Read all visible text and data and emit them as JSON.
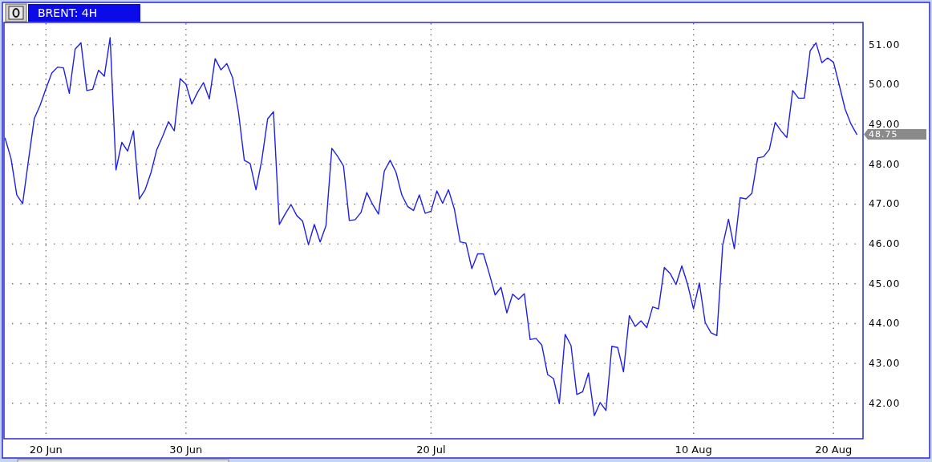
{
  "chart_data": {
    "type": "line",
    "title": "BRENT: 4H",
    "categories": [
      null,
      null,
      null,
      null,
      null,
      null,
      null,
      "20 Jun",
      null,
      null,
      null,
      null,
      null,
      null,
      null,
      null,
      null,
      null,
      null,
      null,
      null,
      null,
      null,
      null,
      null,
      null,
      null,
      null,
      null,
      null,
      null,
      "30 Jun",
      null,
      null,
      null,
      null,
      null,
      null,
      null,
      null,
      null,
      null,
      null,
      null,
      null,
      null,
      null,
      null,
      null,
      null,
      null,
      null,
      null,
      null,
      null,
      null,
      null,
      null,
      null,
      null,
      null,
      null,
      null,
      null,
      null,
      null,
      null,
      null,
      null,
      null,
      null,
      null,
      null,
      "20 Jul",
      null,
      null,
      null,
      null,
      null,
      null,
      null,
      null,
      null,
      null,
      null,
      null,
      null,
      null,
      null,
      null,
      null,
      null,
      null,
      null,
      null,
      null,
      null,
      null,
      null,
      null,
      null,
      null,
      null,
      null,
      null,
      null,
      null,
      null,
      null,
      null,
      null,
      null,
      null,
      null,
      null,
      null,
      null,
      null,
      "10 Aug",
      null,
      null,
      null,
      null,
      null,
      null,
      null,
      null,
      null,
      null,
      null,
      null,
      null,
      null,
      null,
      null,
      null,
      null,
      null,
      null,
      null,
      null,
      null,
      "20 Aug",
      null,
      null,
      null,
      null
    ],
    "series": [
      {
        "color": "#1f1fe8",
        "values": [
          48.65,
          48.15,
          47.23,
          47.01,
          48.1,
          49.15,
          49.48,
          49.9,
          50.29,
          50.44,
          50.42,
          49.78,
          50.89,
          51.05,
          49.85,
          49.88,
          50.36,
          50.21,
          51.18,
          47.86,
          48.55,
          48.33,
          48.84,
          47.13,
          47.36,
          47.79,
          48.37,
          48.7,
          49.07,
          48.84,
          50.15,
          50.01,
          49.51,
          49.81,
          50.05,
          49.64,
          50.65,
          50.37,
          50.53,
          50.17,
          49.31,
          48.1,
          48.02,
          47.36,
          48.11,
          49.14,
          49.32,
          46.49,
          46.75,
          46.99,
          46.71,
          46.57,
          45.98,
          46.49,
          46.05,
          46.46,
          48.4,
          48.2,
          47.96,
          46.59,
          46.61,
          46.79,
          47.29,
          46.99,
          46.75,
          47.83,
          48.1,
          47.8,
          47.23,
          46.94,
          46.84,
          47.23,
          46.77,
          46.82,
          47.33,
          47.02,
          47.36,
          46.88,
          46.05,
          46.02,
          45.38,
          45.75,
          45.75,
          45.25,
          44.72,
          44.91,
          44.27,
          44.74,
          44.61,
          44.75,
          43.6,
          43.63,
          43.46,
          42.72,
          42.62,
          41.99,
          43.73,
          43.45,
          42.22,
          42.29,
          42.76,
          41.69,
          42.02,
          41.82,
          43.43,
          43.4,
          42.79,
          44.2,
          43.93,
          44.07,
          43.9,
          44.42,
          44.37,
          45.41,
          45.26,
          44.98,
          45.45,
          44.98,
          44.37,
          45.02,
          44.03,
          43.77,
          43.7,
          45.96,
          46.62,
          45.88,
          47.16,
          47.13,
          47.27,
          48.16,
          48.19,
          48.37,
          49.05,
          48.84,
          48.67,
          49.85,
          49.66,
          49.66,
          50.85,
          51.05,
          50.55,
          50.67,
          50.56,
          49.98,
          49.38,
          49.01,
          48.75
        ],
        "value_labels": [
          null,
          null,
          null,
          null,
          null,
          null,
          null,
          null,
          null,
          null,
          null,
          null,
          null,
          null,
          null,
          null,
          null,
          null,
          null,
          null,
          null,
          null,
          null,
          null,
          null,
          null,
          null,
          null,
          null,
          null,
          null,
          null,
          null,
          null,
          null,
          null,
          null,
          null,
          null,
          null,
          null,
          null,
          null,
          null,
          null,
          null,
          null,
          null,
          null,
          null,
          null,
          null,
          null,
          null,
          null,
          null,
          null,
          null,
          null,
          null,
          null,
          null,
          null,
          null,
          null,
          null,
          null,
          null,
          null,
          null,
          null,
          null,
          null,
          null,
          null,
          null,
          null,
          null,
          null,
          null,
          null,
          null,
          null,
          null,
          null,
          null,
          null,
          null,
          null,
          null,
          null,
          null,
          null,
          null,
          null,
          null,
          null,
          null,
          null,
          null,
          null,
          null,
          null,
          null,
          null,
          null,
          null,
          null,
          null,
          null,
          null,
          null,
          null,
          null,
          null,
          null,
          null,
          null,
          null,
          null,
          null,
          null,
          null,
          null,
          null,
          null,
          null,
          null,
          null,
          null,
          null,
          null,
          null,
          null,
          null,
          null,
          null,
          null,
          null,
          null,
          null,
          null,
          null,
          null,
          null,
          null,
          "48.75"
        ]
      }
    ],
    "ylim": [
      41.11,
      51.56
    ],
    "yticks": [
      {
        "value": 42,
        "label": "42.00"
      },
      {
        "value": 43,
        "label": "43.00"
      },
      {
        "value": 44,
        "label": "44.00"
      },
      {
        "value": 45,
        "label": "45.00"
      },
      {
        "value": 46,
        "label": "46.00"
      },
      {
        "value": 47,
        "label": "47.00"
      },
      {
        "value": 48,
        "label": "48.00"
      },
      {
        "value": 49,
        "label": "49.00"
      },
      {
        "value": 50,
        "label": "50.00"
      },
      {
        "value": 51,
        "label": "51.00"
      }
    ],
    "grid": true
  }
}
